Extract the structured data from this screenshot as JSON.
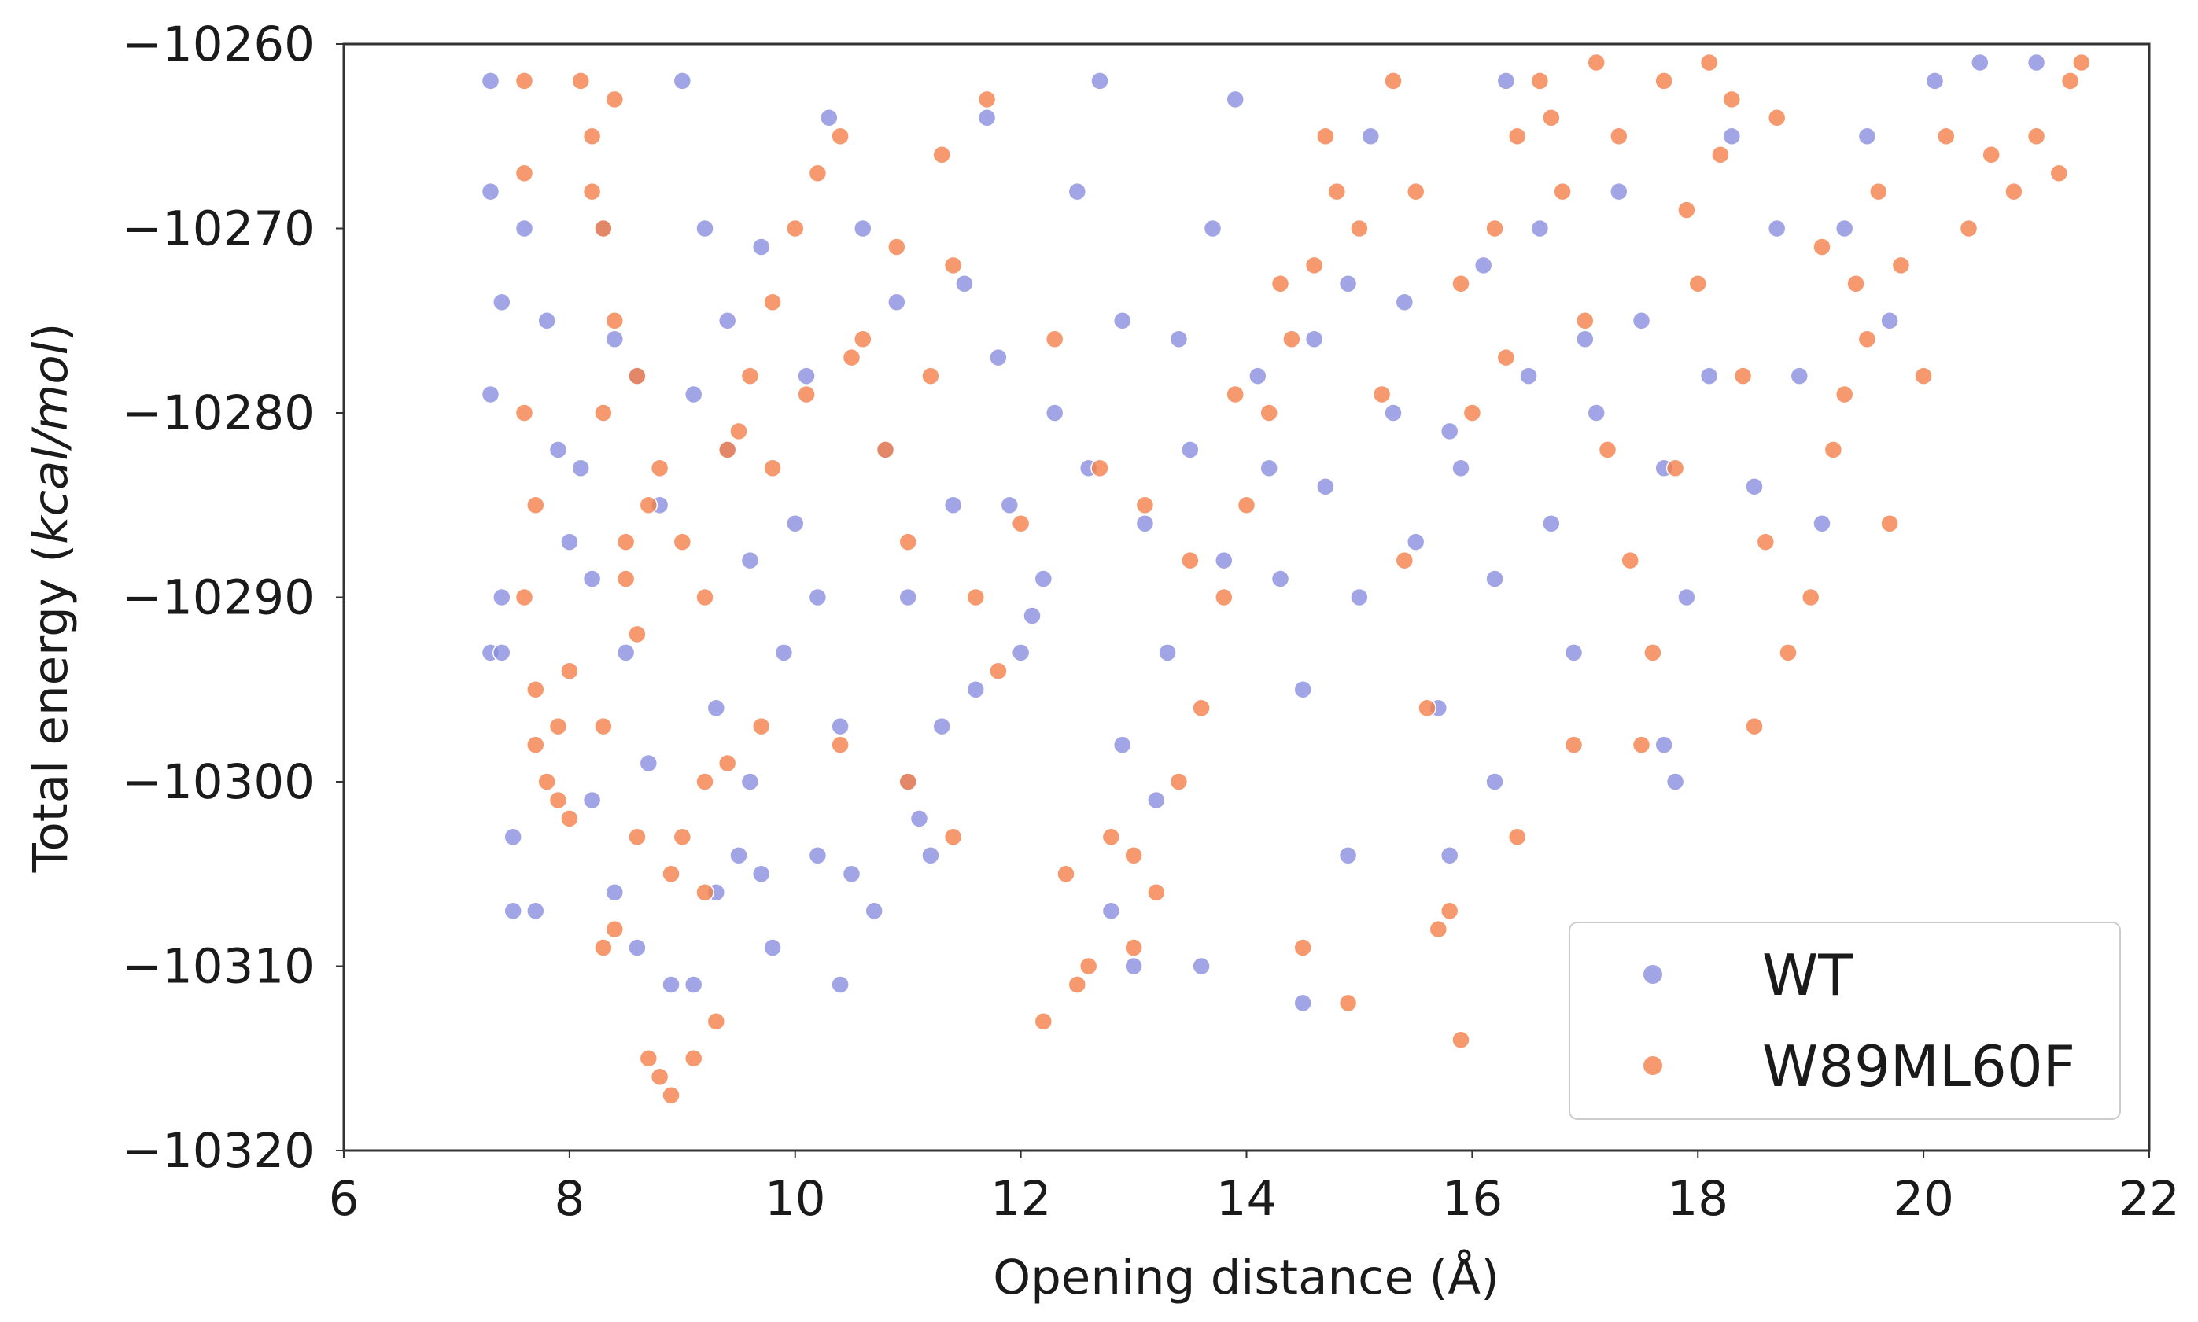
{
  "chart_data": {
    "type": "scatter",
    "title": "",
    "xlabel": "Opening distance (",
    "xlabel_unit": "Å",
    "xlabel_close": ")",
    "ylabel": "Total energy (",
    "ylabel_unit": "kcal/mol",
    "ylabel_close": ")",
    "xlim": [
      6,
      22
    ],
    "ylim": [
      -10320,
      -10260
    ],
    "xticks": [
      6,
      8,
      10,
      12,
      14,
      16,
      18,
      20,
      22
    ],
    "yticks": [
      -10260,
      -10270,
      -10280,
      -10290,
      -10300,
      -10310,
      -10320
    ],
    "xtick_labels": [
      "6",
      "8",
      "10",
      "12",
      "14",
      "16",
      "18",
      "20",
      "22"
    ],
    "ytick_labels": [
      "−10260",
      "−10270",
      "−10280",
      "−10290",
      "−10300",
      "−10310",
      "−10320"
    ],
    "grid": false,
    "legend_position": "bottom-right",
    "series": [
      {
        "name": "WT",
        "color": "#8a8fde",
        "points": [
          [
            7.3,
            -10262
          ],
          [
            7.3,
            -10268
          ],
          [
            7.4,
            -10274
          ],
          [
            7.3,
            -10279
          ],
          [
            7.4,
            -10290
          ],
          [
            7.3,
            -10293
          ],
          [
            7.5,
            -10303
          ],
          [
            7.5,
            -10307
          ],
          [
            7.7,
            -10307
          ],
          [
            7.4,
            -10293
          ],
          [
            7.6,
            -10270
          ],
          [
            7.8,
            -10275
          ],
          [
            7.9,
            -10282
          ],
          [
            8.0,
            -10287
          ],
          [
            8.2,
            -10301
          ],
          [
            8.4,
            -10306
          ],
          [
            8.6,
            -10309
          ],
          [
            8.7,
            -10299
          ],
          [
            8.9,
            -10311
          ],
          [
            9.1,
            -10311
          ],
          [
            9.3,
            -10306
          ],
          [
            9.5,
            -10304
          ],
          [
            9.7,
            -10305
          ],
          [
            9.8,
            -10309
          ],
          [
            10.2,
            -10304
          ],
          [
            10.4,
            -10311
          ],
          [
            10.5,
            -10305
          ],
          [
            10.7,
            -10307
          ],
          [
            11.1,
            -10302
          ],
          [
            11.2,
            -10304
          ],
          [
            8.3,
            -10270
          ],
          [
            8.6,
            -10278
          ],
          [
            8.8,
            -10285
          ],
          [
            9.0,
            -10262
          ],
          [
            9.2,
            -10270
          ],
          [
            9.4,
            -10282
          ],
          [
            9.6,
            -10288
          ],
          [
            9.9,
            -10293
          ],
          [
            10.1,
            -10278
          ],
          [
            10.3,
            -10264
          ],
          [
            10.6,
            -10270
          ],
          [
            10.8,
            -10282
          ],
          [
            11.0,
            -10290
          ],
          [
            11.3,
            -10297
          ],
          [
            11.5,
            -10273
          ],
          [
            11.7,
            -10264
          ],
          [
            11.9,
            -10285
          ],
          [
            12.1,
            -10291
          ],
          [
            12.3,
            -10280
          ],
          [
            12.5,
            -10268
          ],
          [
            12.7,
            -10262
          ],
          [
            12.9,
            -10275
          ],
          [
            13.1,
            -10286
          ],
          [
            13.3,
            -10293
          ],
          [
            13.5,
            -10282
          ],
          [
            13.7,
            -10270
          ],
          [
            13.9,
            -10263
          ],
          [
            14.1,
            -10278
          ],
          [
            14.3,
            -10289
          ],
          [
            14.5,
            -10295
          ],
          [
            14.7,
            -10284
          ],
          [
            14.9,
            -10273
          ],
          [
            15.1,
            -10265
          ],
          [
            15.3,
            -10280
          ],
          [
            15.5,
            -10287
          ],
          [
            15.7,
            -10296
          ],
          [
            15.9,
            -10283
          ],
          [
            16.1,
            -10272
          ],
          [
            16.3,
            -10262
          ],
          [
            16.5,
            -10278
          ],
          [
            16.7,
            -10286
          ],
          [
            16.9,
            -10293
          ],
          [
            17.1,
            -10280
          ],
          [
            17.3,
            -10268
          ],
          [
            17.5,
            -10275
          ],
          [
            17.7,
            -10283
          ],
          [
            17.9,
            -10290
          ],
          [
            18.1,
            -10278
          ],
          [
            18.3,
            -10265
          ],
          [
            18.5,
            -10284
          ],
          [
            18.7,
            -10270
          ],
          [
            18.9,
            -10278
          ],
          [
            19.1,
            -10286
          ],
          [
            19.3,
            -10270
          ],
          [
            19.5,
            -10265
          ],
          [
            19.7,
            -10275
          ],
          [
            20.1,
            -10262
          ],
          [
            20.5,
            -10261
          ],
          [
            21.0,
            -10261
          ],
          [
            12.8,
            -10307
          ],
          [
            13.0,
            -10310
          ],
          [
            13.6,
            -10310
          ],
          [
            14.5,
            -10312
          ],
          [
            14.9,
            -10304
          ],
          [
            13.2,
            -10301
          ],
          [
            12.9,
            -10298
          ],
          [
            17.8,
            -10300
          ],
          [
            17.7,
            -10298
          ],
          [
            15.8,
            -10304
          ],
          [
            16.2,
            -10300
          ],
          [
            9.1,
            -10279
          ],
          [
            9.4,
            -10275
          ],
          [
            9.7,
            -10271
          ],
          [
            10.0,
            -10286
          ],
          [
            10.2,
            -10290
          ],
          [
            10.9,
            -10274
          ],
          [
            11.4,
            -10285
          ],
          [
            11.8,
            -10277
          ],
          [
            12.2,
            -10289
          ],
          [
            12.6,
            -10283
          ],
          [
            13.4,
            -10276
          ],
          [
            13.8,
            -10288
          ],
          [
            14.2,
            -10283
          ],
          [
            14.6,
            -10276
          ],
          [
            15.0,
            -10290
          ],
          [
            15.4,
            -10274
          ],
          [
            15.8,
            -10281
          ],
          [
            16.2,
            -10289
          ],
          [
            16.6,
            -10270
          ],
          [
            17.0,
            -10276
          ],
          [
            8.5,
            -10293
          ],
          [
            8.2,
            -10289
          ],
          [
            8.1,
            -10283
          ],
          [
            8.4,
            -10276
          ],
          [
            9.3,
            -10296
          ],
          [
            9.6,
            -10300
          ],
          [
            10.4,
            -10297
          ],
          [
            11.0,
            -10300
          ],
          [
            11.6,
            -10295
          ],
          [
            12.0,
            -10293
          ]
        ]
      },
      {
        "name": "W89ML60F",
        "color": "#f4804a",
        "points": [
          [
            7.6,
            -10262
          ],
          [
            7.6,
            -10267
          ],
          [
            7.6,
            -10280
          ],
          [
            7.7,
            -10285
          ],
          [
            7.6,
            -10290
          ],
          [
            7.7,
            -10295
          ],
          [
            7.7,
            -10298
          ],
          [
            7.8,
            -10300
          ],
          [
            7.9,
            -10301
          ],
          [
            8.0,
            -10302
          ],
          [
            8.2,
            -10265
          ],
          [
            8.3,
            -10270
          ],
          [
            8.4,
            -10275
          ],
          [
            8.3,
            -10280
          ],
          [
            8.5,
            -10287
          ],
          [
            8.6,
            -10292
          ],
          [
            8.3,
            -10297
          ],
          [
            8.3,
            -10309
          ],
          [
            8.4,
            -10308
          ],
          [
            8.7,
            -10315
          ],
          [
            8.8,
            -10316
          ],
          [
            8.9,
            -10317
          ],
          [
            9.1,
            -10315
          ],
          [
            9.3,
            -10313
          ],
          [
            9.0,
            -10303
          ],
          [
            9.2,
            -10300
          ],
          [
            8.1,
            -10262
          ],
          [
            8.2,
            -10268
          ],
          [
            8.4,
            -10263
          ],
          [
            8.6,
            -10278
          ],
          [
            8.8,
            -10283
          ],
          [
            9.0,
            -10287
          ],
          [
            9.2,
            -10290
          ],
          [
            9.4,
            -10282
          ],
          [
            9.6,
            -10278
          ],
          [
            9.8,
            -10274
          ],
          [
            10.0,
            -10270
          ],
          [
            10.2,
            -10267
          ],
          [
            10.4,
            -10265
          ],
          [
            10.6,
            -10276
          ],
          [
            10.8,
            -10282
          ],
          [
            11.0,
            -10287
          ],
          [
            11.2,
            -10278
          ],
          [
            11.4,
            -10272
          ],
          [
            11.6,
            -10290
          ],
          [
            11.8,
            -10294
          ],
          [
            12.0,
            -10286
          ],
          [
            12.2,
            -10313
          ],
          [
            12.4,
            -10305
          ],
          [
            12.6,
            -10310
          ],
          [
            12.8,
            -10303
          ],
          [
            13.0,
            -10309
          ],
          [
            13.2,
            -10306
          ],
          [
            13.4,
            -10300
          ],
          [
            13.6,
            -10296
          ],
          [
            13.8,
            -10290
          ],
          [
            14.0,
            -10285
          ],
          [
            14.2,
            -10280
          ],
          [
            14.4,
            -10276
          ],
          [
            14.6,
            -10272
          ],
          [
            14.8,
            -10268
          ],
          [
            15.0,
            -10270
          ],
          [
            15.2,
            -10279
          ],
          [
            15.4,
            -10288
          ],
          [
            15.6,
            -10296
          ],
          [
            15.8,
            -10307
          ],
          [
            15.9,
            -10314
          ],
          [
            15.7,
            -10308
          ],
          [
            16.0,
            -10280
          ],
          [
            16.2,
            -10270
          ],
          [
            16.4,
            -10265
          ],
          [
            16.6,
            -10262
          ],
          [
            16.8,
            -10268
          ],
          [
            17.0,
            -10275
          ],
          [
            17.2,
            -10282
          ],
          [
            17.4,
            -10288
          ],
          [
            17.6,
            -10293
          ],
          [
            17.8,
            -10283
          ],
          [
            18.0,
            -10273
          ],
          [
            18.2,
            -10266
          ],
          [
            18.4,
            -10278
          ],
          [
            18.6,
            -10287
          ],
          [
            18.8,
            -10293
          ],
          [
            19.0,
            -10290
          ],
          [
            19.2,
            -10282
          ],
          [
            19.4,
            -10273
          ],
          [
            19.6,
            -10268
          ],
          [
            19.8,
            -10272
          ],
          [
            20.0,
            -10278
          ],
          [
            20.4,
            -10270
          ],
          [
            20.6,
            -10266
          ],
          [
            20.8,
            -10268
          ],
          [
            21.0,
            -10265
          ],
          [
            21.2,
            -10267
          ],
          [
            21.3,
            -10262
          ],
          [
            21.4,
            -10261
          ],
          [
            20.2,
            -10265
          ],
          [
            19.7,
            -10286
          ],
          [
            18.5,
            -10297
          ],
          [
            17.5,
            -10298
          ],
          [
            16.9,
            -10298
          ],
          [
            16.4,
            -10303
          ],
          [
            14.9,
            -10312
          ],
          [
            14.5,
            -10309
          ],
          [
            12.5,
            -10311
          ],
          [
            13.0,
            -10304
          ],
          [
            11.4,
            -10303
          ],
          [
            11.0,
            -10300
          ],
          [
            10.4,
            -10298
          ],
          [
            9.7,
            -10297
          ],
          [
            9.4,
            -10299
          ],
          [
            9.2,
            -10306
          ],
          [
            8.9,
            -10305
          ],
          [
            8.6,
            -10303
          ],
          [
            7.9,
            -10297
          ],
          [
            8.0,
            -10294
          ],
          [
            8.5,
            -10289
          ],
          [
            8.7,
            -10285
          ],
          [
            9.5,
            -10281
          ],
          [
            9.8,
            -10283
          ],
          [
            10.1,
            -10279
          ],
          [
            10.5,
            -10277
          ],
          [
            10.9,
            -10271
          ],
          [
            11.3,
            -10266
          ],
          [
            11.7,
            -10263
          ],
          [
            12.3,
            -10276
          ],
          [
            12.7,
            -10283
          ],
          [
            13.1,
            -10285
          ],
          [
            13.5,
            -10288
          ],
          [
            13.9,
            -10279
          ],
          [
            14.3,
            -10273
          ],
          [
            14.7,
            -10265
          ],
          [
            15.3,
            -10262
          ],
          [
            15.5,
            -10268
          ],
          [
            15.9,
            -10273
          ],
          [
            16.3,
            -10277
          ],
          [
            16.7,
            -10264
          ],
          [
            17.1,
            -10261
          ],
          [
            17.3,
            -10265
          ],
          [
            17.7,
            -10262
          ],
          [
            18.1,
            -10261
          ],
          [
            18.3,
            -10263
          ],
          [
            17.9,
            -10269
          ],
          [
            18.7,
            -10264
          ],
          [
            19.1,
            -10271
          ],
          [
            19.3,
            -10279
          ],
          [
            19.5,
            -10276
          ]
        ]
      }
    ]
  }
}
